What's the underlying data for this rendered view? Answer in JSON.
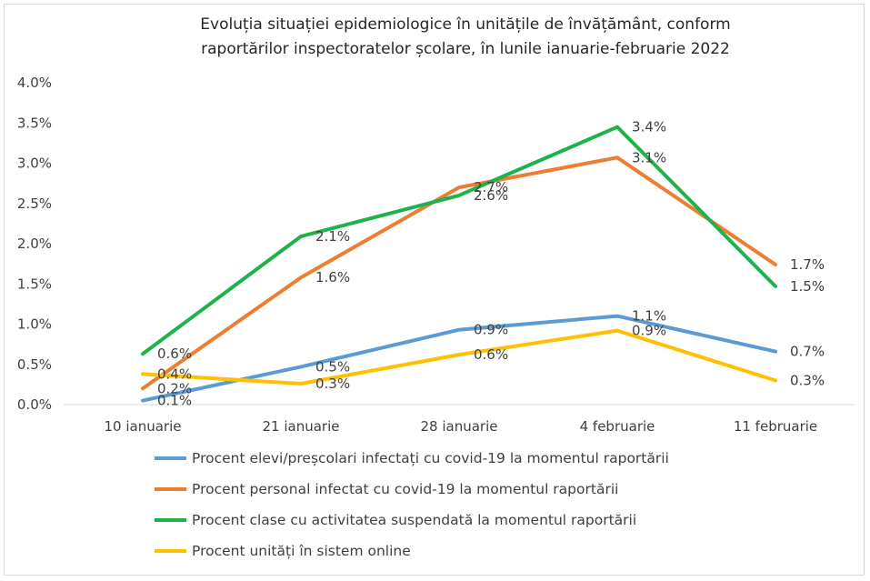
{
  "chart_data": {
    "type": "line",
    "title": "Evoluția situației epidemiologice în unitățile de învățământ, conform raportărilor inspectoratelor școlare, în lunile ianuarie-februarie 2022",
    "title_lines": [
      "Evoluția situației epidemiologice în unitățile de învățământ, conform",
      "raportărilor inspectoratelor școlare, în lunile ianuarie-februarie 2022"
    ],
    "categories": [
      "10 ianuarie",
      "21 ianuarie",
      "28 ianuarie",
      "4 februarie",
      "11 februarie"
    ],
    "ylim": [
      0,
      0.04
    ],
    "yticks": [
      {
        "value": 0.0,
        "label": "0.0%"
      },
      {
        "value": 0.005,
        "label": "0.5%"
      },
      {
        "value": 0.01,
        "label": "1.0%"
      },
      {
        "value": 0.015,
        "label": "1.5%"
      },
      {
        "value": 0.02,
        "label": "2.0%"
      },
      {
        "value": 0.025,
        "label": "2.5%"
      },
      {
        "value": 0.03,
        "label": "3.0%"
      },
      {
        "value": 0.035,
        "label": "3.5%"
      },
      {
        "value": 0.04,
        "label": "4.0%"
      }
    ],
    "grid": false,
    "legend_position": "bottom",
    "series": [
      {
        "name": "Procent elevi/preșcolari infectați cu covid-19 la momentul raportării",
        "color": "#5b9bd5",
        "values": [
          0.0005,
          0.0047,
          0.0093,
          0.011,
          0.0066
        ],
        "labels": [
          "0.1%",
          "0.5%",
          "0.9%",
          "1.1%",
          "0.7%"
        ]
      },
      {
        "name": "Procent personal infectat cu covid-19 la momentul raportării",
        "color": "#ed7d31",
        "values": [
          0.002,
          0.0158,
          0.027,
          0.0307,
          0.0174
        ],
        "labels": [
          "0.2%",
          "1.6%",
          "2.7%",
          "3.1%",
          "1.7%"
        ]
      },
      {
        "name": "Procent clase cu activitatea suspendată la momentul raportării",
        "color": "#1eb24b",
        "values": [
          0.0063,
          0.0209,
          0.026,
          0.0345,
          0.0147
        ],
        "labels": [
          "0.6%",
          "2.1%",
          "2.6%",
          "3.4%",
          "1.5%"
        ]
      },
      {
        "name": "Procent unități în sistem online",
        "color": "#ffc000",
        "values": [
          0.0038,
          0.0026,
          0.0062,
          0.0092,
          0.003
        ],
        "labels": [
          "0.4%",
          "0.3%",
          "0.6%",
          "0.9%",
          "0.3%"
        ]
      }
    ]
  }
}
